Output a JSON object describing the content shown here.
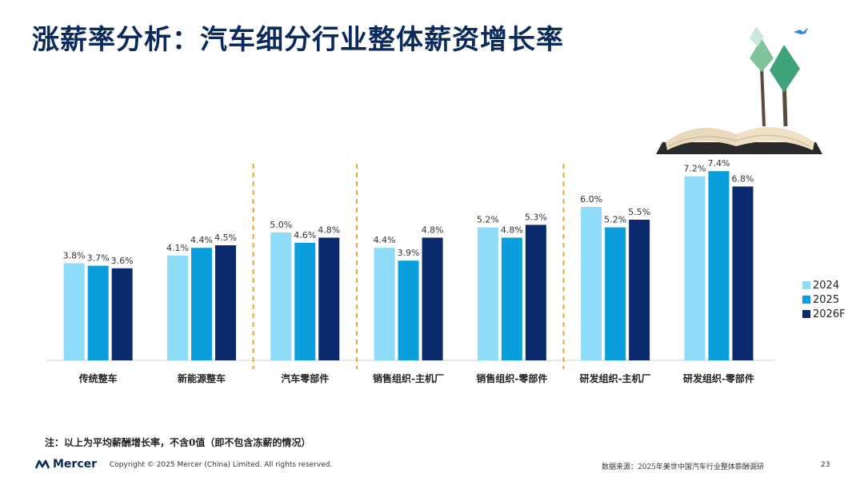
{
  "header": {
    "title": "涨薪率分析：汽车细分行业整体薪资增长率"
  },
  "chart_data": {
    "type": "bar",
    "title": "",
    "xlabel": "",
    "ylabel": "",
    "ylim": [
      0,
      8
    ],
    "grid": false,
    "legend_position": "right",
    "categories": [
      "传统整车",
      "新能源整车",
      "汽车零部件",
      "销售组织-主机厂",
      "销售组织-零部件",
      "研发组织-主机厂",
      "研发组织-零部件"
    ],
    "series": [
      {
        "name": "2024",
        "values": [
          3.8,
          4.1,
          5.0,
          4.4,
          5.2,
          6.0,
          7.2
        ],
        "labels": [
          "3.8%",
          "4.1%",
          "5.0%",
          "4.4%",
          "5.2%",
          "6.0%",
          "7.2%"
        ],
        "color": "#8fdcf9"
      },
      {
        "name": "2025",
        "values": [
          3.7,
          4.4,
          4.6,
          3.9,
          4.8,
          5.2,
          7.4
        ],
        "labels": [
          "3.7%",
          "4.4%",
          "4.6%",
          "3.9%",
          "4.8%",
          "5.2%",
          "7.4%"
        ],
        "color": "#0a9fdc"
      },
      {
        "name": "2026F",
        "values": [
          3.6,
          4.5,
          4.8,
          4.8,
          5.3,
          5.5,
          6.8
        ],
        "labels": [
          "3.6%",
          "4.5%",
          "4.8%",
          "4.8%",
          "5.3%",
          "5.5%",
          "6.8%"
        ],
        "color": "#0b2a6e"
      }
    ],
    "group_dividers_after": [
      1,
      2,
      4
    ]
  },
  "note": "注：以上为平均薪酬增长率，不含0值（即不包含冻薪的情况）",
  "footer": {
    "brand": "Mercer",
    "copyright": "Copyright © 2025 Mercer (China) Limited. All rights reserved.",
    "source": "数据来源：2025年美世中国汽车行业整体薪酬调研",
    "page": "23"
  },
  "colors": {
    "title": "#0b2a5b",
    "divider": "#f0a030",
    "axis": "#d0d0d0"
  }
}
